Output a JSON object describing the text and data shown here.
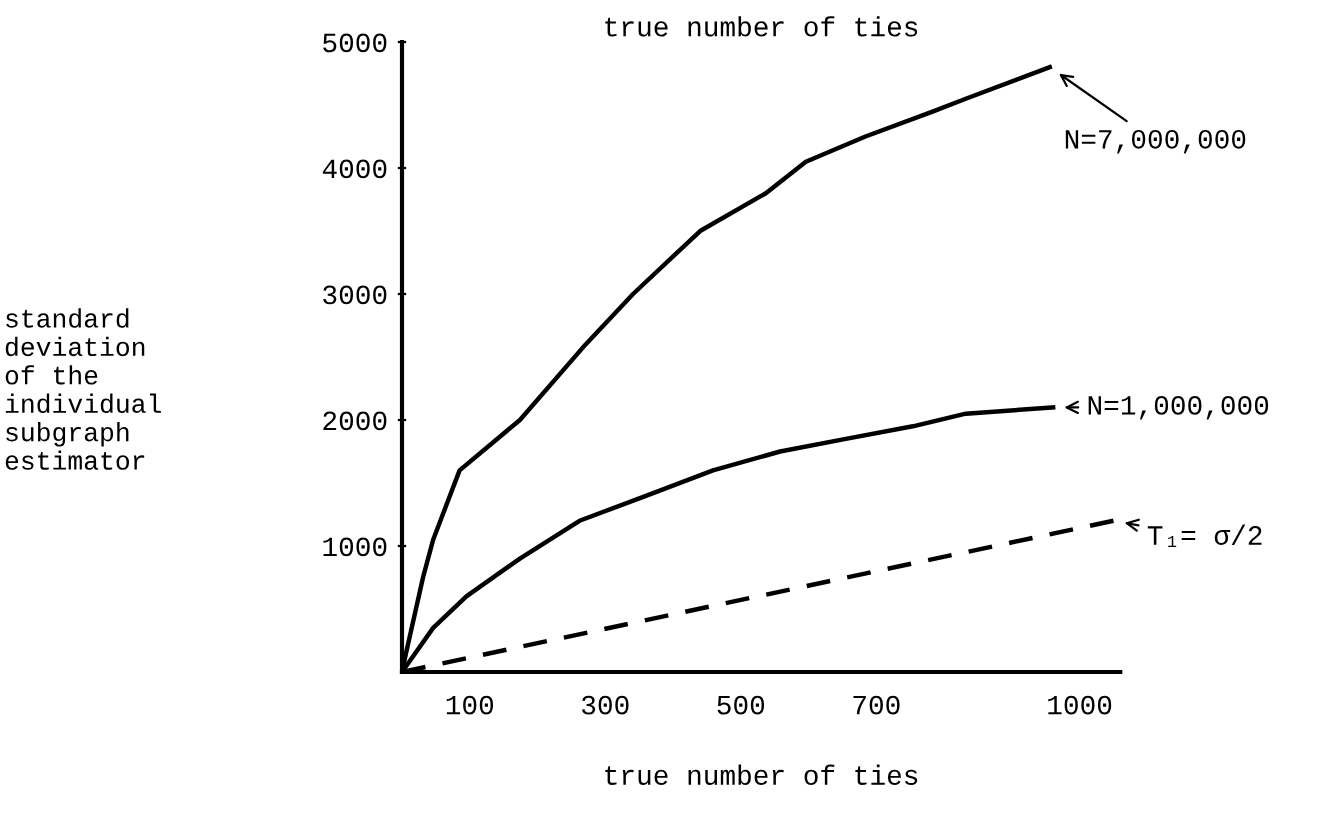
{
  "chart_data": {
    "type": "line",
    "title": "true number of ties",
    "xlabel": "true number of ties",
    "series": [
      {
        "color": "#000000",
        "line_style": "solid",
        "x": [
          0,
          6,
          31,
          46,
          85,
          174,
          271,
          341,
          440,
          537,
          596,
          684,
          784,
          832,
          956
        ],
        "values": [
          0,
          150,
          750,
          1050,
          1600,
          2000,
          2600,
          3000,
          3500,
          3800,
          4050,
          4250,
          4450,
          4550,
          4800
        ]
      },
      {
        "color": "#000000",
        "line_style": "solid",
        "x": [
          0,
          46,
          95,
          174,
          262,
          361,
          459,
          558,
          655,
          754,
          832,
          961
        ],
        "values": [
          0,
          350,
          600,
          900,
          1200,
          1400,
          1600,
          1750,
          1850,
          1950,
          2050,
          2100
        ]
      },
      {
        "color": "#000000",
        "line_style": "dashed",
        "x": [
          0,
          1050
        ],
        "values": [
          0,
          1200
        ]
      }
    ],
    "annotations": [
      "standard\ndeviation\nof the\nindividual\nsubgraph\nestimator",
      {
        "text": "N=7,000,000",
        "x": 956,
        "y": 4800
      },
      {
        "text": "N=1,000,000",
        "x": 961,
        "y": 2100
      },
      {
        "text": "T₁= σ/2",
        "x": 1050,
        "y": 1200
      }
    ],
    "xlim": [
      0,
      1060
    ],
    "xticks": [
      100,
      300,
      500,
      700,
      1000
    ],
    "ylim": [
      0,
      5000
    ],
    "yticks": [
      1000,
      2000,
      3000,
      4000,
      5000
    ],
    "grid": false,
    "legend": false,
    "marker": "none"
  }
}
